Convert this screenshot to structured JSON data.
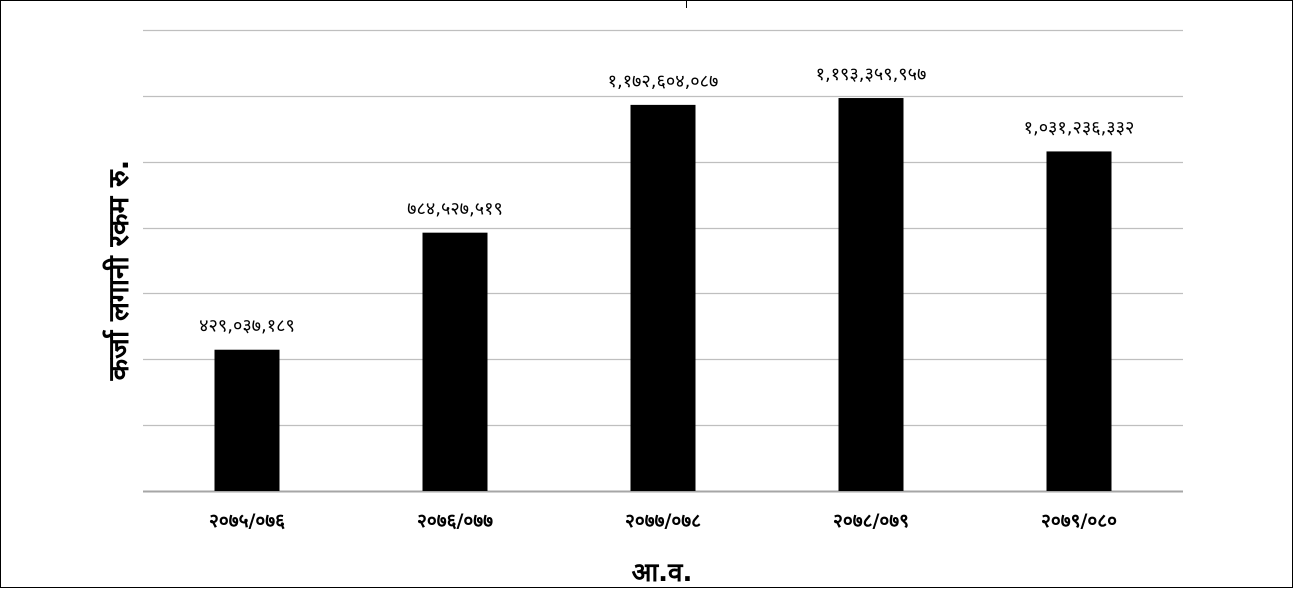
{
  "chart_data": {
    "type": "bar",
    "categories": [
      "२०७५/०७६",
      "२०७६/०७७",
      "२०७७/०७८",
      "२०७८/०७९",
      "२०७९/०८०"
    ],
    "values": [
      429037189,
      784527519,
      1172604087,
      1193359957,
      1031236332
    ],
    "data_labels": [
      "४२९,०३७,१८९",
      "७८४,५२७,५१९",
      "१,१७२,६०४,०८७",
      "१,१९३,३५९,९५७",
      "१,०३१,२३६,३३२"
    ],
    "xlabel": "आ.व.",
    "ylabel": "कर्जा लगानी रकम रु.",
    "ylim": [
      0,
      1400000000
    ],
    "gridline_step": 200000000,
    "grid": true,
    "legend": "none",
    "bar_color": "#000000",
    "grid_color": "#bfbfbf"
  }
}
